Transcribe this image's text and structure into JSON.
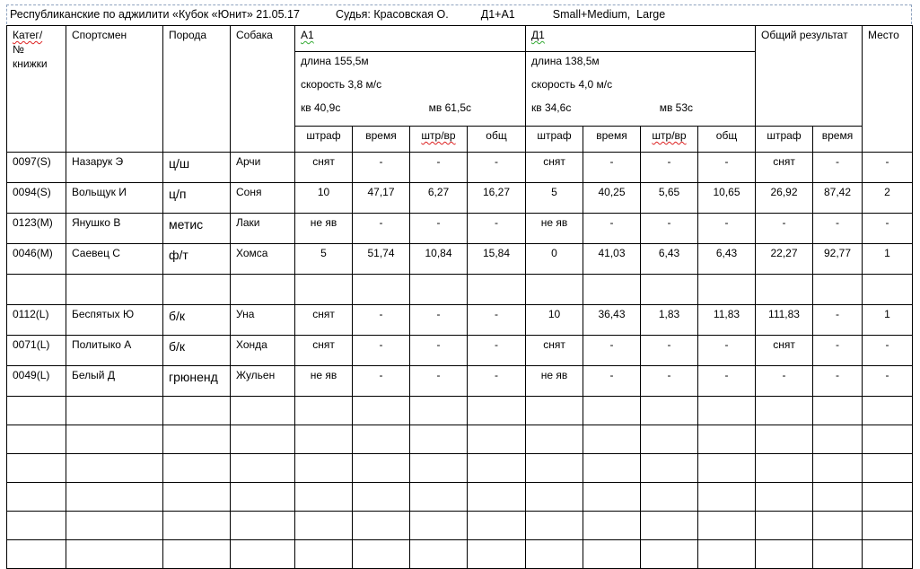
{
  "header": {
    "event": "Республиканские по аджилити «Кубок «Юнит» 21.05.17",
    "judge": "Судья: Красовская О.",
    "courses": "Д1+А1",
    "classes": "Small+Medium,  Large"
  },
  "columns": {
    "category": [
      "Катег/",
      "№",
      "книжки"
    ],
    "athlete": "Спортсмен",
    "breed": "Порода",
    "dog": "Собака",
    "total": "Общий результат",
    "place": "Место",
    "a1": {
      "name": "А1",
      "length": "длина 155,5м",
      "speed": "скорость 3,8 м/с",
      "kv": "кв  40,9с",
      "mv": "мв  61,5с"
    },
    "d1": {
      "name": "Д1",
      "length": "длина 138,5м",
      "speed": "скорость 4,0 м/с",
      "kv": "кв  34,6с",
      "mv": "мв 53с"
    },
    "sub": {
      "penalty": "штраф",
      "time": "время",
      "pen_time": "штр/вр",
      "sum": "общ"
    }
  },
  "rows": [
    {
      "cat": "0097(S)",
      "athlete": "Назарук Э",
      "breed": "ц/ш",
      "dog": "Арчи",
      "a1": [
        "снят",
        "-",
        "-",
        "-"
      ],
      "d1": [
        "снят",
        "-",
        "-",
        "-"
      ],
      "total": [
        "снят",
        "-"
      ],
      "place": "-"
    },
    {
      "cat": "0094(S)",
      "athlete": "Вольщук И",
      "breed": "ц/п",
      "dog": "Соня",
      "a1": [
        "10",
        "47,17",
        "6,27",
        "16,27"
      ],
      "d1": [
        "5",
        "40,25",
        "5,65",
        "10,65"
      ],
      "total": [
        "26,92",
        "87,42"
      ],
      "place": "2"
    },
    {
      "cat": "0123(M)",
      "athlete": "Янушко В",
      "breed": "метис",
      "dog": "Лаки",
      "a1": [
        "не яв",
        "-",
        "-",
        "-"
      ],
      "d1": [
        "не яв",
        "-",
        "-",
        "-"
      ],
      "total": [
        "-",
        "-"
      ],
      "place": "-"
    },
    {
      "cat": "0046(M)",
      "athlete": "Саевец С",
      "breed": "ф/т",
      "dog": "Хомса",
      "a1": [
        "5",
        "51,74",
        "10,84",
        "15,84"
      ],
      "d1": [
        "0",
        "41,03",
        "6,43",
        "6,43"
      ],
      "total": [
        "22,27",
        "92,77"
      ],
      "place": "1"
    },
    {
      "cat": "",
      "athlete": "",
      "breed": "",
      "dog": "",
      "a1": [
        "",
        "",
        "",
        ""
      ],
      "d1": [
        "",
        "",
        "",
        ""
      ],
      "total": [
        "",
        ""
      ],
      "place": ""
    },
    {
      "cat": "0112(L)",
      "athlete": "Беспятых Ю",
      "breed": "б/к",
      "dog": "Уна",
      "a1": [
        "снят",
        "-",
        "-",
        "-"
      ],
      "d1": [
        "10",
        "36,43",
        "1,83",
        "11,83"
      ],
      "total": [
        "111,83",
        "-"
      ],
      "place": "1"
    },
    {
      "cat": "0071(L)",
      "athlete": "Политыко А",
      "breed": "б/к",
      "dog": "Хонда",
      "a1": [
        "снят",
        "-",
        "-",
        "-"
      ],
      "d1": [
        "снят",
        "-",
        "-",
        "-"
      ],
      "total": [
        "снят",
        "-"
      ],
      "place": "-"
    },
    {
      "cat": "0049(L)",
      "athlete": "Белый Д",
      "breed": "грюненд",
      "dog": "Жульен",
      "a1": [
        "не яв",
        "-",
        "-",
        "-"
      ],
      "d1": [
        "не яв",
        "-",
        "-",
        "-"
      ],
      "total": [
        "-",
        "-"
      ],
      "place": "-"
    }
  ],
  "empty_rows": 6
}
